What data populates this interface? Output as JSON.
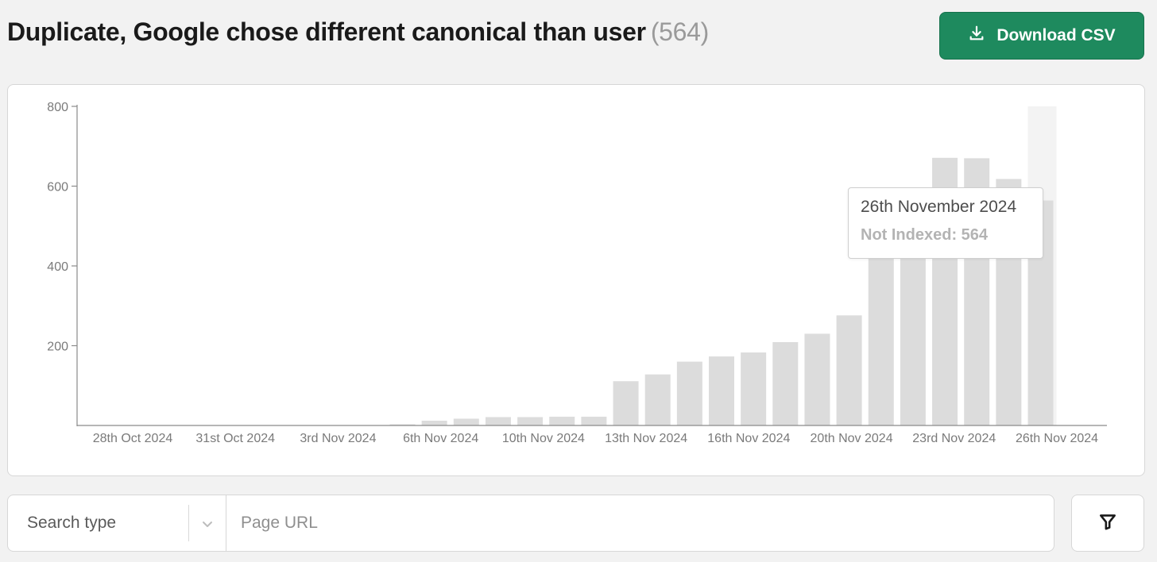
{
  "header": {
    "title": "Duplicate, Google chose different canonical than user",
    "count": "(564)"
  },
  "toolbar": {
    "download_label": "Download CSV",
    "download_icon": "download-icon"
  },
  "colors": {
    "accent": "#1e8a5e",
    "bar": "#dcdcdc",
    "bar_highlight_bg": "#f3f3f3"
  },
  "chart_data": {
    "type": "bar",
    "title": "",
    "xlabel": "",
    "ylabel": "",
    "ylim": [
      0,
      800
    ],
    "yticks": [
      200,
      400,
      600,
      800
    ],
    "x_tick_labels": [
      "28th Oct 2024",
      "31st Oct 2024",
      "3rd Nov 2024",
      "6th Nov 2024",
      "10th Nov 2024",
      "13th Nov 2024",
      "16th Nov 2024",
      "20th Nov 2024",
      "23rd Nov 2024",
      "26th Nov 2024"
    ],
    "series": [
      {
        "values": [
          0,
          0,
          0,
          0,
          0,
          0,
          0,
          0,
          0,
          1,
          3,
          12,
          17,
          21,
          21,
          22,
          22,
          111,
          128,
          160,
          173,
          183,
          209,
          230,
          276,
          420,
          420,
          671,
          670,
          618,
          564
        ]
      }
    ],
    "highlighted_index": 30,
    "grid": false
  },
  "tooltip": {
    "date": "26th November 2024",
    "label": "Not Indexed: 564"
  },
  "search": {
    "type_label": "Search type",
    "url_placeholder": "Page URL"
  },
  "filter": {
    "icon": "filter-icon"
  }
}
